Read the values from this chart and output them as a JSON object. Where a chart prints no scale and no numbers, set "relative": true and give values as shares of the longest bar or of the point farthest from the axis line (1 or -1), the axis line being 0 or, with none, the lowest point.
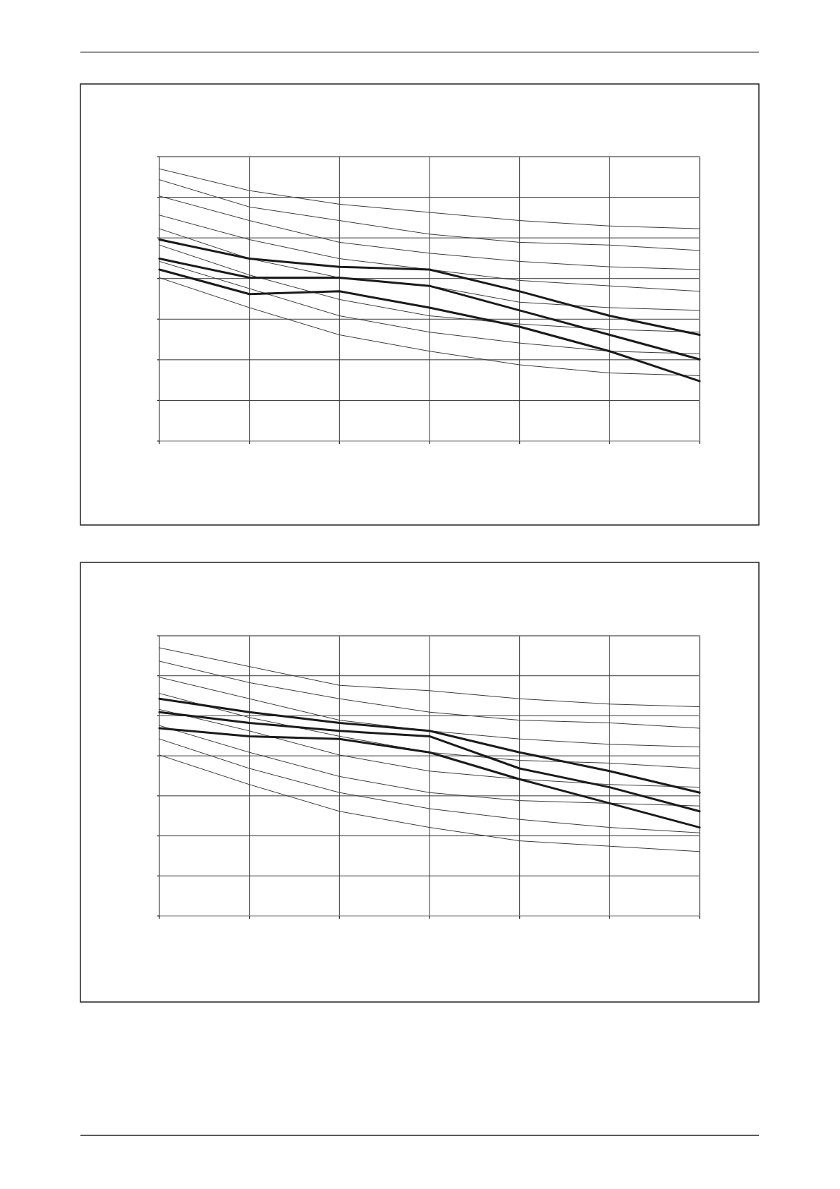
{
  "chart_data": [
    {
      "type": "line",
      "relative": true,
      "grid": true,
      "categories": [
        null,
        null,
        null,
        null,
        null,
        null,
        null
      ],
      "series": [
        {
          "color": "#3a3a3a",
          "values": [
            1.0,
            0.92,
            0.87,
            0.84,
            0.81,
            0.79,
            0.78
          ]
        },
        {
          "color": "#3a3a3a",
          "values": [
            0.96,
            0.86,
            0.81,
            0.76,
            0.73,
            0.72,
            0.7
          ]
        },
        {
          "color": "#3a3a3a",
          "values": [
            0.9,
            0.81,
            0.73,
            0.69,
            0.66,
            0.64,
            0.63
          ]
        },
        {
          "color": "#3a3a3a",
          "values": [
            0.83,
            0.74,
            0.67,
            0.63,
            0.59,
            0.57,
            0.55
          ]
        },
        {
          "color": "#3a3a3a",
          "values": [
            0.78,
            0.67,
            0.6,
            0.57,
            0.51,
            0.49,
            0.48
          ]
        },
        {
          "color": "#3a3a3a",
          "values": [
            0.72,
            0.61,
            0.52,
            0.46,
            0.43,
            0.41,
            0.4
          ]
        },
        {
          "color": "#3a3a3a",
          "values": [
            0.66,
            0.56,
            0.46,
            0.4,
            0.36,
            0.33,
            0.32
          ]
        },
        {
          "color": "#3a3a3a",
          "values": [
            0.6,
            0.49,
            0.39,
            0.33,
            0.28,
            0.25,
            0.24
          ]
        },
        {
          "color": "#1a1a1a",
          "values": [
            0.74,
            0.67,
            0.64,
            0.63,
            0.55,
            0.46,
            0.39
          ]
        },
        {
          "color": "#1a1a1a",
          "values": [
            0.67,
            0.6,
            0.6,
            0.57,
            0.48,
            0.39,
            0.3
          ]
        },
        {
          "color": "#1a1a1a",
          "values": [
            0.63,
            0.54,
            0.55,
            0.49,
            0.42,
            0.33,
            0.22
          ]
        }
      ]
    },
    {
      "type": "line",
      "relative": true,
      "grid": true,
      "categories": [
        null,
        null,
        null,
        null,
        null,
        null,
        null
      ],
      "series": [
        {
          "color": "#3a3a3a",
          "values": [
            1.0,
            0.93,
            0.86,
            0.84,
            0.81,
            0.79,
            0.78
          ]
        },
        {
          "color": "#3a3a3a",
          "values": [
            0.95,
            0.87,
            0.81,
            0.76,
            0.73,
            0.72,
            0.7
          ]
        },
        {
          "color": "#3a3a3a",
          "values": [
            0.89,
            0.81,
            0.73,
            0.69,
            0.66,
            0.64,
            0.63
          ]
        },
        {
          "color": "#3a3a3a",
          "values": [
            0.83,
            0.74,
            0.67,
            0.61,
            0.58,
            0.57,
            0.55
          ]
        },
        {
          "color": "#3a3a3a",
          "values": [
            0.77,
            0.69,
            0.6,
            0.54,
            0.51,
            0.49,
            0.48
          ]
        },
        {
          "color": "#3a3a3a",
          "values": [
            0.71,
            0.61,
            0.52,
            0.46,
            0.43,
            0.42,
            0.41
          ]
        },
        {
          "color": "#3a3a3a",
          "values": [
            0.66,
            0.55,
            0.46,
            0.4,
            0.36,
            0.33,
            0.31
          ]
        },
        {
          "color": "#3a3a3a",
          "values": [
            0.6,
            0.49,
            0.39,
            0.33,
            0.28,
            0.26,
            0.24
          ]
        },
        {
          "color": "#1a1a1a",
          "values": [
            0.81,
            0.76,
            0.72,
            0.69,
            0.61,
            0.54,
            0.46
          ]
        },
        {
          "color": "#1a1a1a",
          "values": [
            0.76,
            0.72,
            0.69,
            0.67,
            0.55,
            0.48,
            0.39
          ]
        },
        {
          "color": "#1a1a1a",
          "values": [
            0.7,
            0.67,
            0.66,
            0.61,
            0.51,
            0.42,
            0.33
          ]
        }
      ]
    }
  ]
}
